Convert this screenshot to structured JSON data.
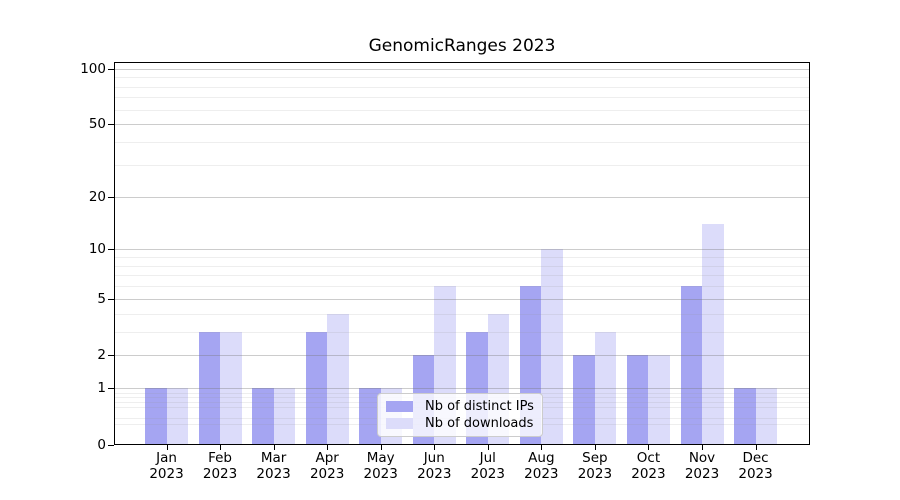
{
  "chart_data": {
    "type": "bar",
    "title": "GenomicRanges 2023",
    "categories": [
      "Jan",
      "Feb",
      "Mar",
      "Apr",
      "May",
      "Jun",
      "Jul",
      "Aug",
      "Sep",
      "Oct",
      "Nov",
      "Dec"
    ],
    "year": "2023",
    "series": [
      {
        "name": "Nb of distinct IPs",
        "color": "#a5a5f2",
        "values": [
          1,
          3,
          1,
          3,
          1,
          2,
          3,
          6,
          2,
          2,
          6,
          1
        ]
      },
      {
        "name": "Nb of downloads",
        "color": "#dcdcfa",
        "values": [
          1,
          3,
          1,
          4,
          1,
          6,
          4,
          10,
          3,
          2,
          14,
          1
        ]
      }
    ],
    "y_axis": {
      "scale": "log1p",
      "major_ticks": [
        0,
        1,
        2,
        5,
        10,
        20,
        50,
        100
      ],
      "major_tick_labels": [
        "0",
        "1",
        "2",
        "5",
        "10",
        "20",
        "50",
        "100"
      ],
      "minor_ticks": [
        0.3,
        0.4,
        0.6,
        0.7,
        0.8,
        0.9,
        3,
        4,
        6,
        7,
        8,
        9,
        30,
        40,
        60,
        70,
        80,
        90
      ],
      "max": 108.4
    },
    "legend": {
      "position": "lower-center",
      "entries": [
        "Nb of distinct IPs",
        "Nb of downloads"
      ]
    },
    "grid": true,
    "colors": {
      "spine": "#000000",
      "background": "#ffffff",
      "major_grid": "rgba(120,120,120,0.38)",
      "minor_grid": "rgba(150,150,150,0.16)"
    }
  }
}
